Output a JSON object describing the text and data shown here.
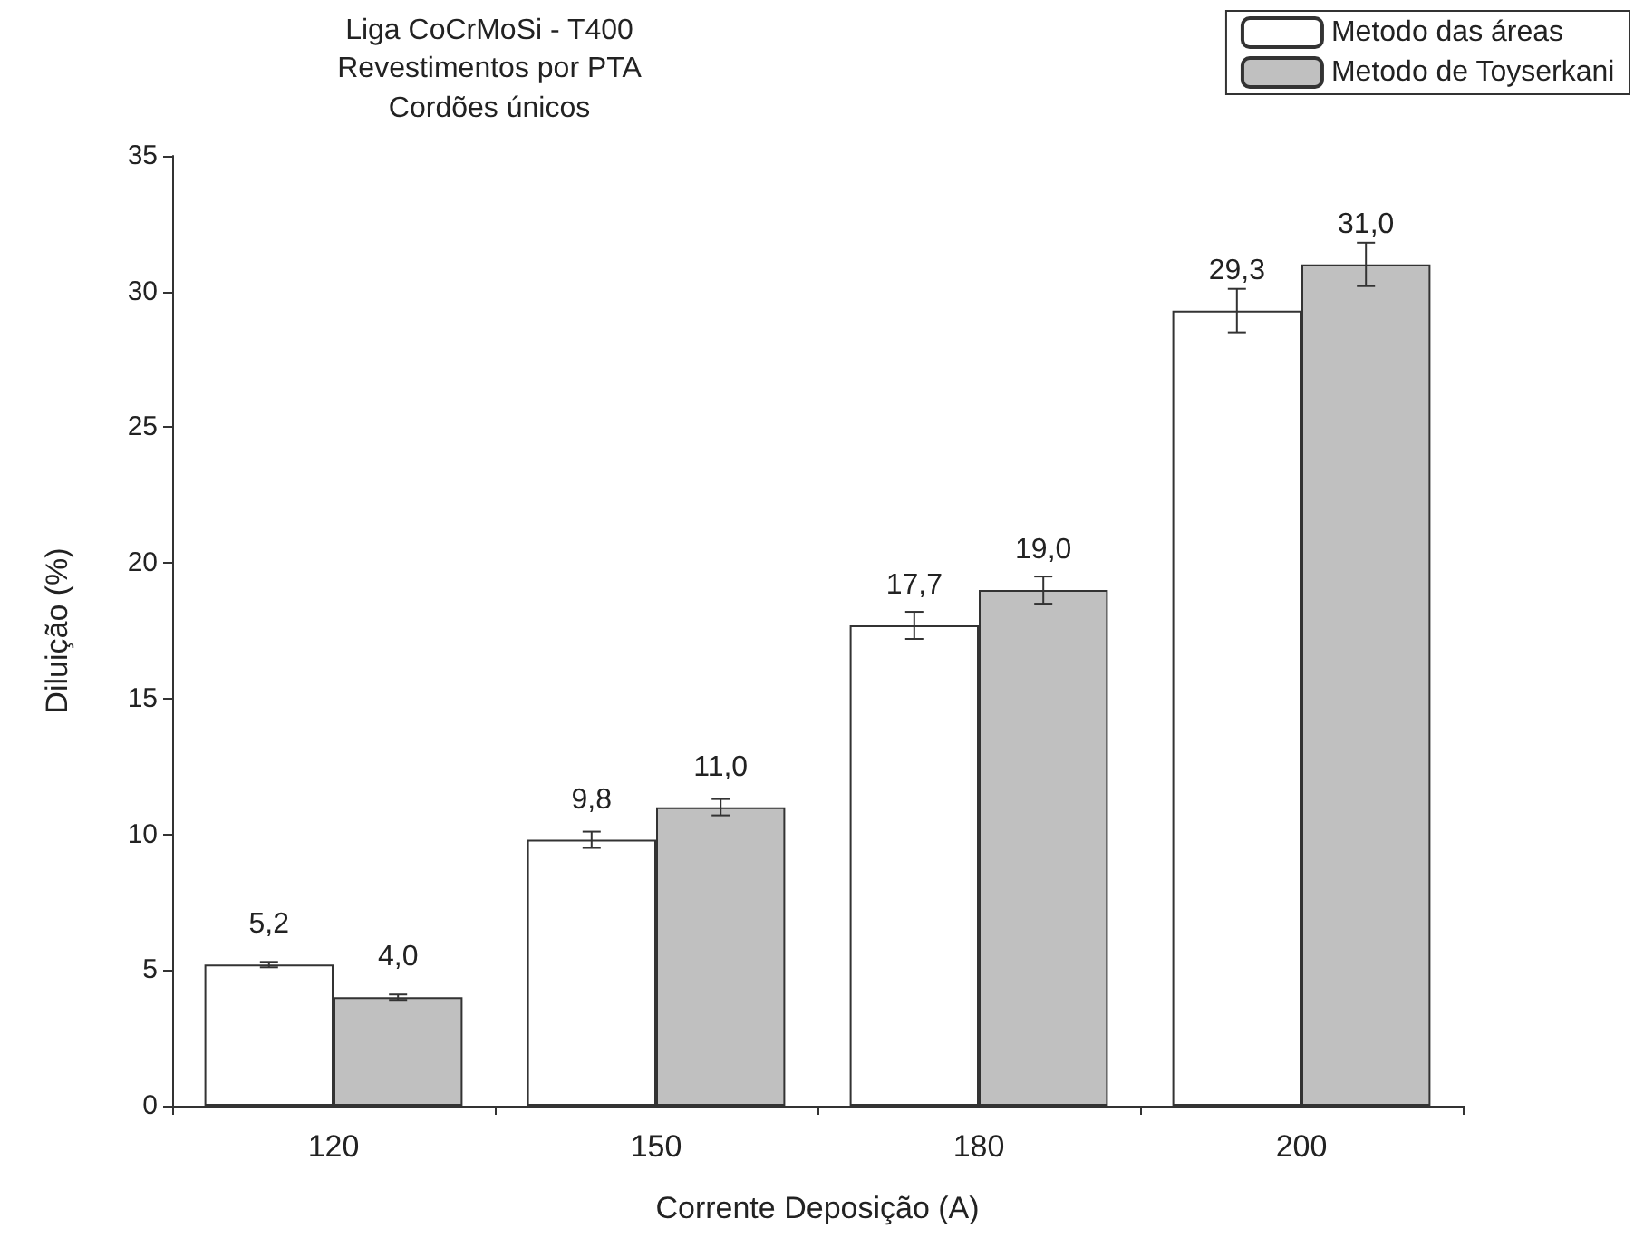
{
  "chart_data": {
    "type": "bar",
    "title": "Liga CoCrMoSi - T400",
    "subtitle": "Revestimentos por PTA\nCordões únicos",
    "xlabel": "Corrente Deposição (A)",
    "ylabel": "Diluição (%)",
    "categories": [
      "120",
      "150",
      "180",
      "200"
    ],
    "series": [
      {
        "name": "Metodo das áreas",
        "color": "#ffffff",
        "values": [
          5.2,
          9.8,
          17.7,
          29.3
        ],
        "errors": [
          0.1,
          0.3,
          0.5,
          0.8
        ],
        "value_labels": [
          "5,2",
          "9,8",
          "17,7",
          "29,3"
        ]
      },
      {
        "name": "Metodo de Toyserkani",
        "color": "#c0c0c0",
        "values": [
          4.0,
          11.0,
          19.0,
          31.0
        ],
        "errors": [
          0.1,
          0.3,
          0.5,
          0.8
        ],
        "value_labels": [
          "4,0",
          "11,0",
          "19,0",
          "31,0"
        ]
      }
    ],
    "ylim": [
      0,
      35
    ],
    "yticks": [
      0,
      5,
      10,
      15,
      20,
      25,
      30,
      35
    ],
    "grid": false,
    "legend": "top right"
  }
}
